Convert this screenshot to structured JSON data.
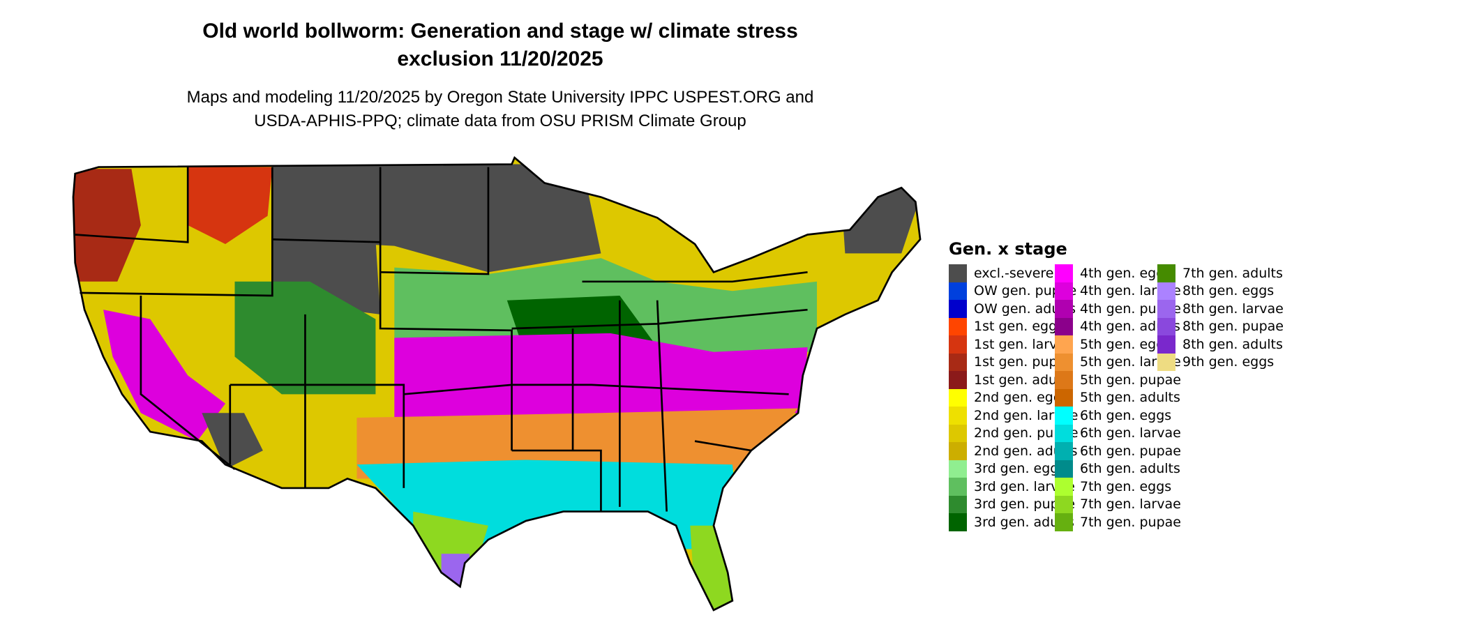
{
  "header": {
    "title_line1": "Old world bollworm: Generation and stage w/ climate stress",
    "title_line2": "exclusion 11/20/2025",
    "subtitle_line1": "Maps and modeling 11/20/2025 by Oregon State University IPPC USPEST.ORG and",
    "subtitle_line2": "USDA-APHIS-PPQ; climate data from OSU PRISM Climate Group"
  },
  "chart_data": {
    "type": "map",
    "region": "contiguous United States",
    "legend_placement": "right",
    "legend": {
      "title": "Gen. x stage",
      "items": [
        {
          "label": "excl.-severe",
          "color": "#4d4d4d"
        },
        {
          "label": "OW gen. pupae",
          "color": "#0040dd"
        },
        {
          "label": "OW gen. adults",
          "color": "#0000cc"
        },
        {
          "label": "1st gen. eggs",
          "color": "#ff4500"
        },
        {
          "label": "1st gen. larvae",
          "color": "#d63510"
        },
        {
          "label": "1st gen. pupae",
          "color": "#a82a15"
        },
        {
          "label": "1st gen. adults",
          "color": "#8b1a1a"
        },
        {
          "label": "2nd gen. eggs",
          "color": "#ffff00"
        },
        {
          "label": "2nd gen. larvae",
          "color": "#eee000"
        },
        {
          "label": "2nd gen. pupae",
          "color": "#ddc800"
        },
        {
          "label": "2nd gen. adults",
          "color": "#ccae00"
        },
        {
          "label": "3rd gen. eggs",
          "color": "#90ee90"
        },
        {
          "label": "3rd gen. larvae",
          "color": "#5fbf5f"
        },
        {
          "label": "3rd gen. pupae",
          "color": "#2e8b2e"
        },
        {
          "label": "3rd gen. adults",
          "color": "#006400"
        },
        {
          "label": "4th gen. eggs",
          "color": "#ff00ff"
        },
        {
          "label": "4th gen. larvae",
          "color": "#dd00dd"
        },
        {
          "label": "4th gen. pupae",
          "color": "#b000b0"
        },
        {
          "label": "4th gen. adults",
          "color": "#8b008b"
        },
        {
          "label": "5th gen. eggs",
          "color": "#ffa54f"
        },
        {
          "label": "5th gen. larvae",
          "color": "#ee9030"
        },
        {
          "label": "5th gen. pupae",
          "color": "#dd7818"
        },
        {
          "label": "5th gen. adults",
          "color": "#cc6600"
        },
        {
          "label": "6th gen. eggs",
          "color": "#00ffff"
        },
        {
          "label": "6th gen. larvae",
          "color": "#00dddd"
        },
        {
          "label": "6th gen. pupae",
          "color": "#00b0b0"
        },
        {
          "label": "6th gen. adults",
          "color": "#008b8b"
        },
        {
          "label": "7th gen. eggs",
          "color": "#adff2f"
        },
        {
          "label": "7th gen. larvae",
          "color": "#8ed820"
        },
        {
          "label": "7th gen. pupae",
          "color": "#66b010"
        },
        {
          "label": "7th gen. adults",
          "color": "#458b00"
        },
        {
          "label": "8th gen. eggs",
          "color": "#ab82ff"
        },
        {
          "label": "8th gen. larvae",
          "color": "#9b66ee"
        },
        {
          "label": "8th gen. pupae",
          "color": "#8a48dd"
        },
        {
          "label": "8th gen. adults",
          "color": "#7a28cc"
        },
        {
          "label": "9th gen. eggs",
          "color": "#eedc82"
        }
      ]
    }
  }
}
